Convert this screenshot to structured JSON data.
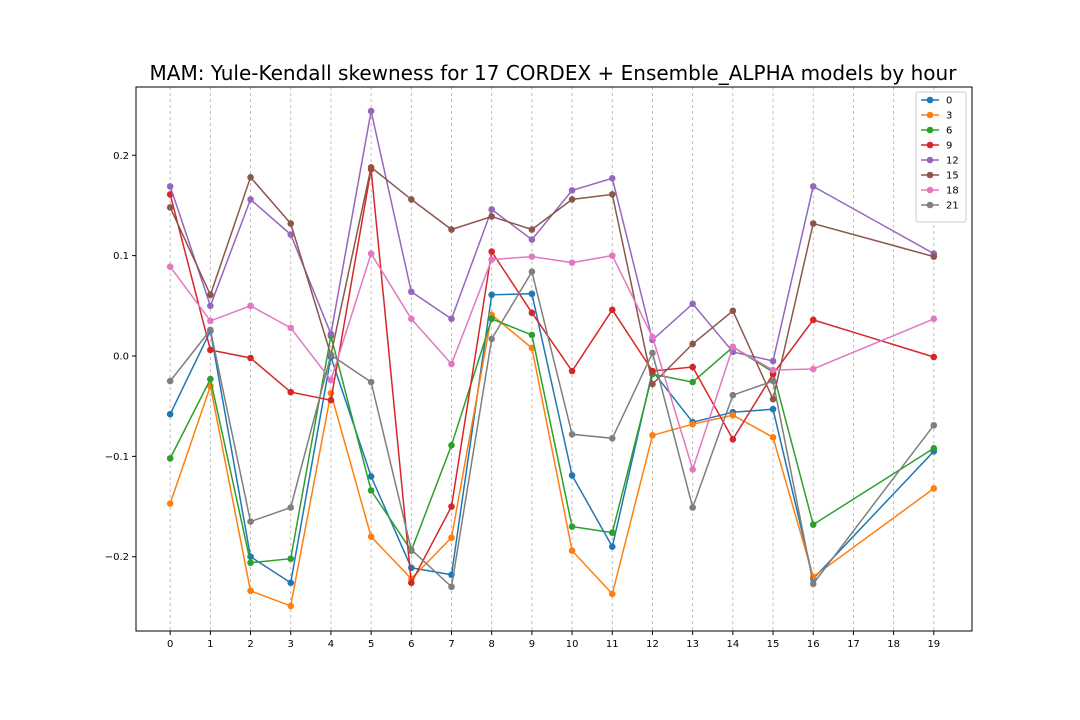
{
  "chart_data": {
    "type": "line",
    "title": "MAM: Yule-Kendall skewness for 17 CORDEX + Ensemble_ALPHA models by hour",
    "xlabel": "",
    "ylabel": "",
    "x_ticks": [
      0,
      1,
      2,
      3,
      4,
      5,
      6,
      7,
      8,
      9,
      10,
      11,
      12,
      13,
      14,
      15,
      16,
      17,
      18,
      19
    ],
    "xlim": [
      -0.85,
      19.95
    ],
    "y_ticks": [
      -0.2,
      -0.1,
      0.0,
      0.1,
      0.2
    ],
    "y_tick_labels": [
      "−0.2",
      "−0.1",
      "0.0",
      "0.1",
      "0.2"
    ],
    "ylim": [
      -0.274,
      0.268
    ],
    "grid": "vertical dashed at x ticks",
    "legend_position": "top-right",
    "x": [
      0,
      1,
      2,
      3,
      4,
      5,
      6,
      7,
      8,
      9,
      10,
      11,
      12,
      13,
      14,
      15,
      16,
      19
    ],
    "series": [
      {
        "name": "0",
        "color": "#1f77b4",
        "values": [
          -0.058,
          0.025,
          -0.2,
          -0.226,
          -0.001,
          -0.12,
          -0.211,
          -0.218,
          0.061,
          0.062,
          -0.119,
          -0.19,
          -0.015,
          -0.066,
          -0.056,
          -0.053,
          -0.222,
          -0.095
        ]
      },
      {
        "name": "3",
        "color": "#ff7f0e",
        "values": [
          -0.147,
          -0.03,
          -0.234,
          -0.249,
          -0.037,
          -0.18,
          -0.222,
          -0.181,
          0.041,
          0.008,
          -0.194,
          -0.237,
          -0.079,
          -0.068,
          -0.059,
          -0.081,
          -0.22,
          -0.132
        ]
      },
      {
        "name": "6",
        "color": "#2ca02c",
        "values": [
          -0.102,
          -0.023,
          -0.206,
          -0.202,
          0.02,
          -0.134,
          -0.194,
          -0.089,
          0.037,
          0.021,
          -0.17,
          -0.176,
          -0.018,
          -0.026,
          0.009,
          -0.016,
          -0.168,
          -0.092
        ]
      },
      {
        "name": "9",
        "color": "#d62728",
        "values": [
          0.161,
          0.006,
          -0.002,
          -0.036,
          -0.044,
          0.186,
          -0.226,
          -0.15,
          0.104,
          0.043,
          -0.015,
          0.046,
          -0.015,
          -0.011,
          -0.083,
          -0.018,
          0.036,
          -0.001
        ]
      },
      {
        "name": "12",
        "color": "#9467bd",
        "values": [
          0.169,
          0.05,
          0.156,
          0.121,
          0.022,
          0.244,
          0.064,
          0.037,
          0.146,
          0.116,
          0.165,
          0.177,
          0.016,
          0.052,
          0.004,
          -0.005,
          0.169,
          0.102
        ]
      },
      {
        "name": "15",
        "color": "#8c564b",
        "values": [
          0.148,
          0.061,
          0.178,
          0.132,
          0.001,
          0.188,
          0.156,
          0.126,
          0.139,
          0.126,
          0.156,
          0.161,
          -0.028,
          0.012,
          0.045,
          -0.043,
          0.132,
          0.099
        ]
      },
      {
        "name": "18",
        "color": "#e377c2",
        "values": [
          0.089,
          0.035,
          0.05,
          0.028,
          -0.024,
          0.102,
          0.037,
          -0.008,
          0.096,
          0.099,
          0.093,
          0.1,
          0.019,
          -0.113,
          0.009,
          -0.014,
          -0.013,
          0.037
        ]
      },
      {
        "name": "21",
        "color": "#7f7f7f",
        "values": [
          -0.025,
          0.026,
          -0.165,
          -0.151,
          0.001,
          -0.026,
          -0.193,
          -0.23,
          0.017,
          0.084,
          -0.078,
          -0.082,
          0.003,
          -0.151,
          -0.039,
          -0.025,
          -0.227,
          -0.069
        ]
      }
    ]
  }
}
